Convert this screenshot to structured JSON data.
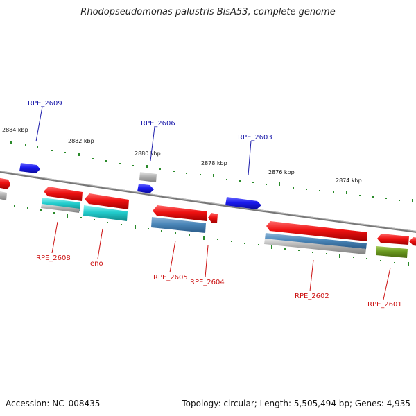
{
  "header": {
    "title": "Rhodopseudomonas palustris BisA53, complete genome"
  },
  "footer": {
    "accession": "Accession: NC_008435",
    "topology": "Topology: circular; Length: 5,505,494 bp; Genes: 4,935"
  },
  "scale_labels": [
    "2884 kbp",
    "2882 kbp",
    "2880 kbp",
    "2878 kbp",
    "2876 kbp",
    "2874 kbp"
  ],
  "gene_labels": {
    "forward": [
      "RPE_2609",
      "RPE_2606",
      "RPE_2603"
    ],
    "reverse": [
      "RPE_2608",
      "eno",
      "RPE_2605",
      "RPE_2604",
      "RPE_2602",
      "RPE_2601"
    ]
  },
  "colors": {
    "forward_gene": "#1a1aee",
    "reverse_gene": "#ee1111",
    "forward_label": "#1a1aaa",
    "reverse_label": "#cc1111",
    "backbone": "#888888",
    "tick": "#2a8a2a",
    "cyan_track": "#22cccc",
    "steelblue_track": "#4a86b8",
    "gray_track": "#b0b0b0",
    "olive_track": "#6a9a20"
  }
}
